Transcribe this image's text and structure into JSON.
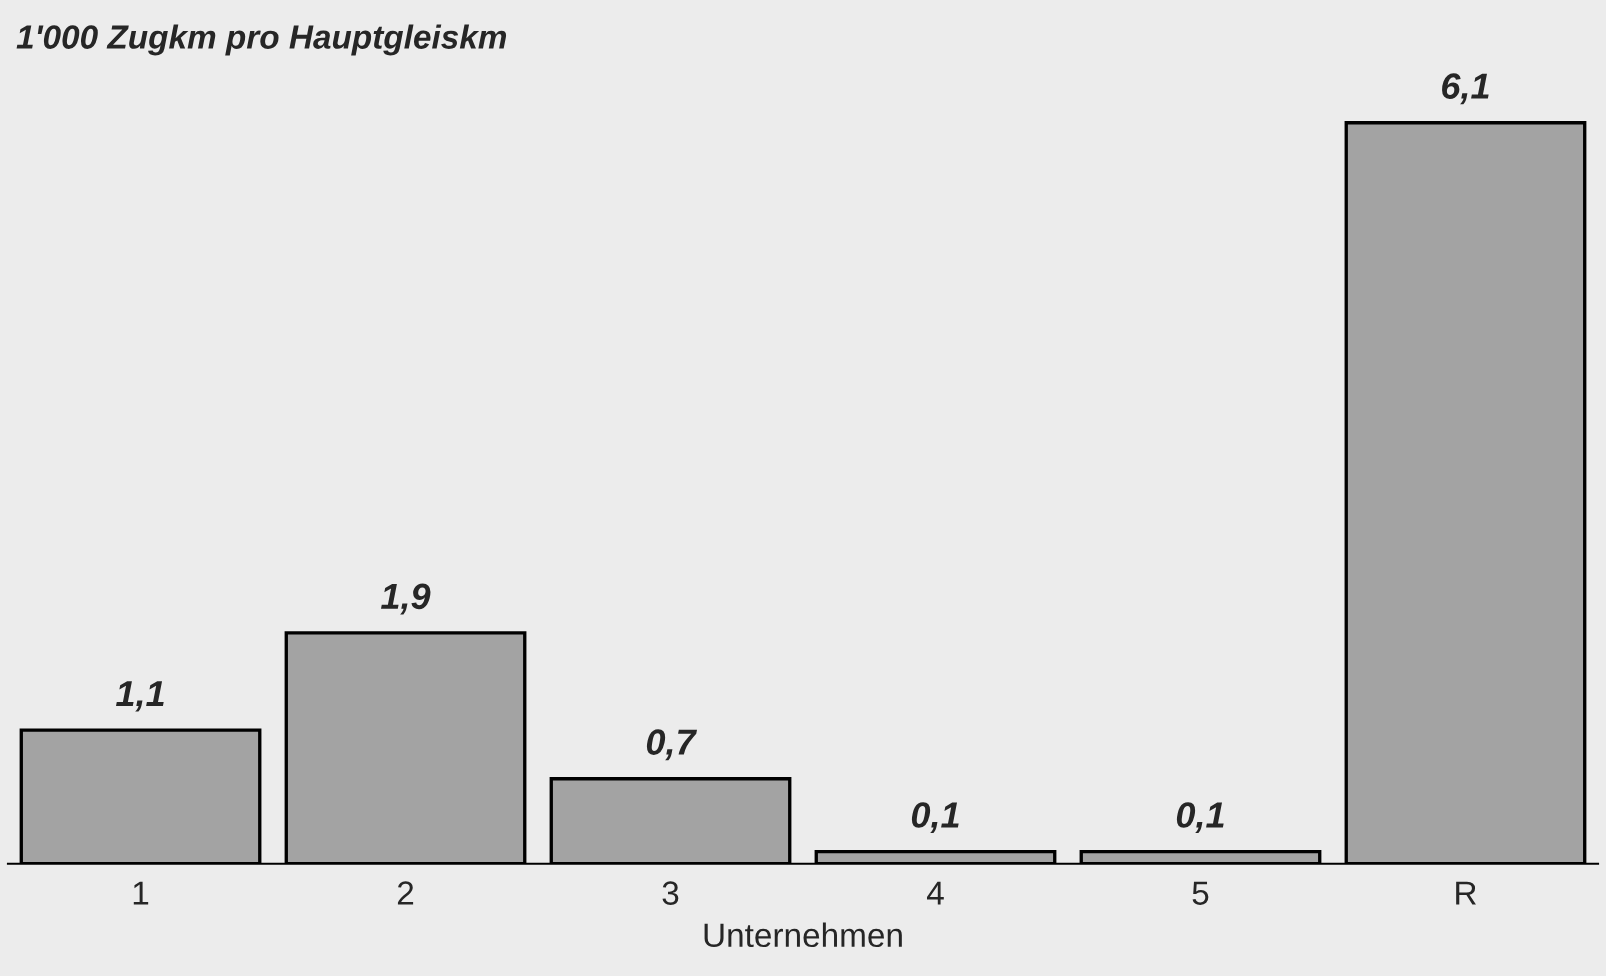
{
  "chart_data": {
    "type": "bar",
    "ylabel": "1'000 Zugkm pro Hauptgleiskm",
    "xlabel": "Unternehmen",
    "categories": [
      "1",
      "2",
      "3",
      "4",
      "5",
      "R"
    ],
    "values": [
      1.1,
      1.9,
      0.7,
      0.1,
      0.1,
      6.1
    ],
    "value_labels": [
      "1,1",
      "1,9",
      "0,7",
      "0,1",
      "0,1",
      "6,1"
    ],
    "color": "#a3a3a3",
    "grid": false,
    "legend": false
  }
}
